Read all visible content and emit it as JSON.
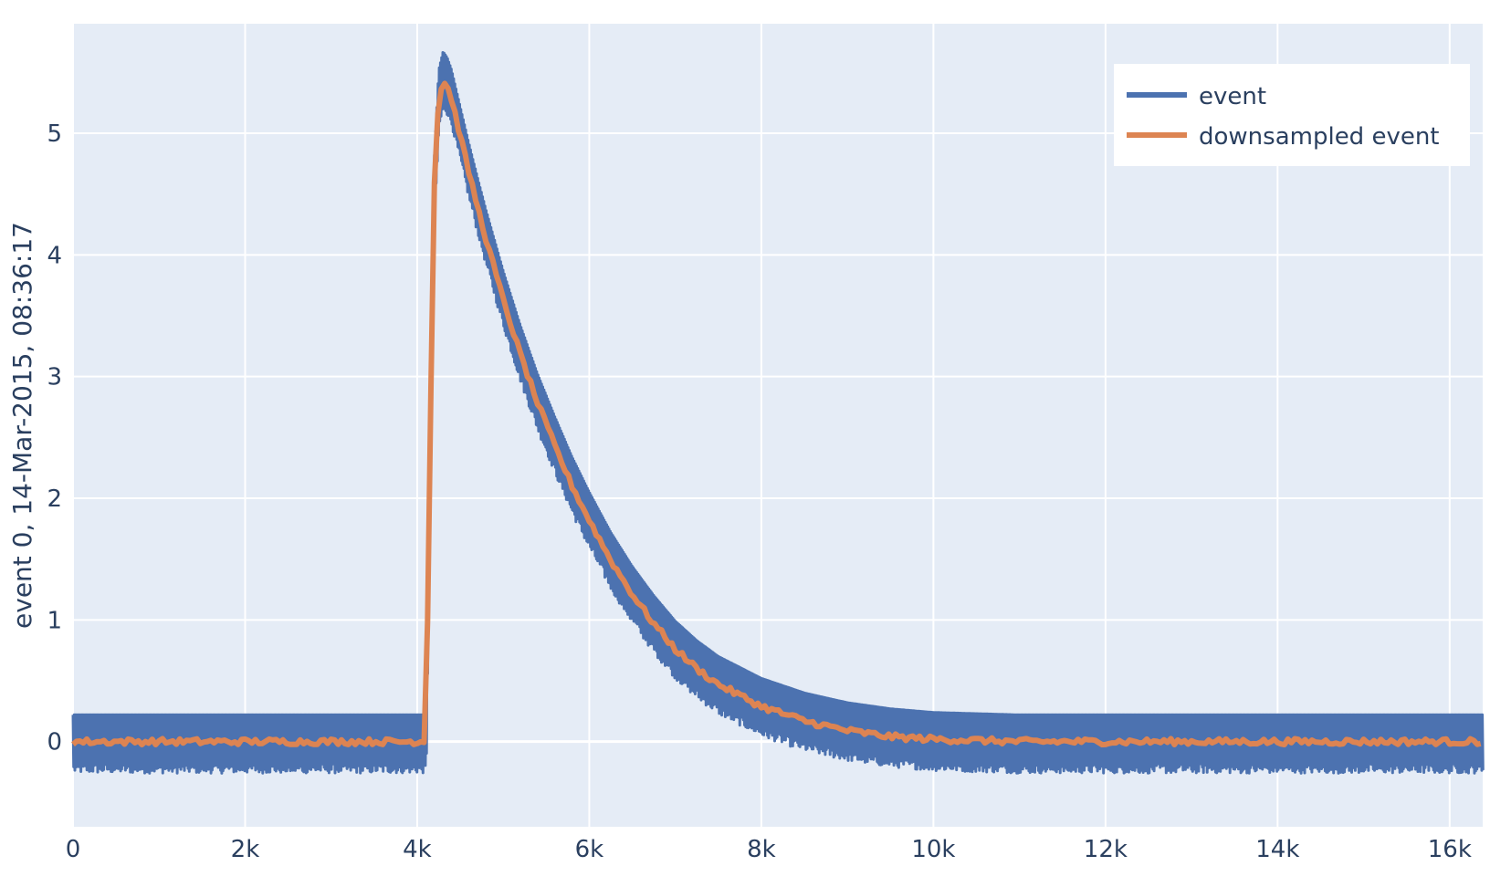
{
  "chart_data": {
    "type": "line",
    "title": "",
    "xlabel": "",
    "ylabel": "event 0, 14-Mar-2015, 08:36:17",
    "xlim": [
      0,
      16384
    ],
    "ylim": [
      -0.7,
      5.9
    ],
    "grid": true,
    "legend_position": "top-right",
    "x_ticks": [
      {
        "value": 0,
        "label": "0"
      },
      {
        "value": 2000,
        "label": "2k"
      },
      {
        "value": 4000,
        "label": "4k"
      },
      {
        "value": 6000,
        "label": "6k"
      },
      {
        "value": 8000,
        "label": "8k"
      },
      {
        "value": 10000,
        "label": "10k"
      },
      {
        "value": 12000,
        "label": "12k"
      },
      {
        "value": 14000,
        "label": "14k"
      },
      {
        "value": 16000,
        "label": "16k"
      }
    ],
    "y_ticks": [
      {
        "value": 0,
        "label": "0"
      },
      {
        "value": 1,
        "label": "1"
      },
      {
        "value": 2,
        "label": "2"
      },
      {
        "value": 3,
        "label": "3"
      },
      {
        "value": 4,
        "label": "4"
      },
      {
        "value": 5,
        "label": "5"
      }
    ],
    "series": [
      {
        "name": "event",
        "color": "#4c72b0",
        "noise_band": 0.22,
        "x": [
          0,
          500,
          1000,
          1500,
          2000,
          2500,
          3000,
          3500,
          4000,
          4100,
          4150,
          4200,
          4250,
          4300,
          4350,
          4400,
          4450,
          4500,
          4600,
          4700,
          4800,
          4900,
          5000,
          5200,
          5400,
          5600,
          5800,
          6000,
          6250,
          6500,
          6750,
          7000,
          7250,
          7500,
          8000,
          8500,
          9000,
          9500,
          10000,
          11000,
          12000,
          13000,
          14000,
          15000,
          16000,
          16384
        ],
        "y": [
          0.0,
          0.0,
          0.0,
          0.0,
          0.0,
          0.0,
          0.0,
          0.0,
          0.0,
          0.0,
          2.5,
          4.6,
          5.3,
          5.45,
          5.4,
          5.3,
          5.15,
          5.0,
          4.7,
          4.42,
          4.15,
          3.9,
          3.65,
          3.2,
          2.8,
          2.45,
          2.12,
          1.83,
          1.5,
          1.22,
          0.98,
          0.77,
          0.61,
          0.48,
          0.3,
          0.18,
          0.1,
          0.05,
          0.02,
          0.0,
          0.0,
          0.0,
          0.0,
          0.0,
          0.0,
          0.0
        ]
      },
      {
        "name": "downsampled event",
        "color": "#dd8452",
        "x": [
          0,
          500,
          1000,
          1500,
          2000,
          2500,
          3000,
          3500,
          4000,
          4100,
          4150,
          4200,
          4250,
          4300,
          4350,
          4400,
          4450,
          4500,
          4600,
          4700,
          4800,
          4900,
          5000,
          5200,
          5400,
          5600,
          5800,
          6000,
          6250,
          6500,
          6750,
          7000,
          7250,
          7500,
          8000,
          8500,
          9000,
          9500,
          10000,
          11000,
          12000,
          13000,
          14000,
          15000,
          16000,
          16384
        ],
        "y": [
          0.0,
          0.0,
          0.0,
          0.0,
          0.0,
          0.0,
          0.0,
          0.0,
          0.0,
          0.0,
          2.5,
          4.6,
          5.3,
          5.43,
          5.38,
          5.28,
          5.13,
          4.98,
          4.68,
          4.4,
          4.13,
          3.88,
          3.63,
          3.18,
          2.78,
          2.43,
          2.1,
          1.82,
          1.49,
          1.21,
          0.97,
          0.76,
          0.6,
          0.47,
          0.29,
          0.17,
          0.09,
          0.04,
          0.02,
          0.0,
          0.0,
          0.0,
          0.0,
          0.0,
          0.0,
          0.0
        ]
      }
    ]
  }
}
